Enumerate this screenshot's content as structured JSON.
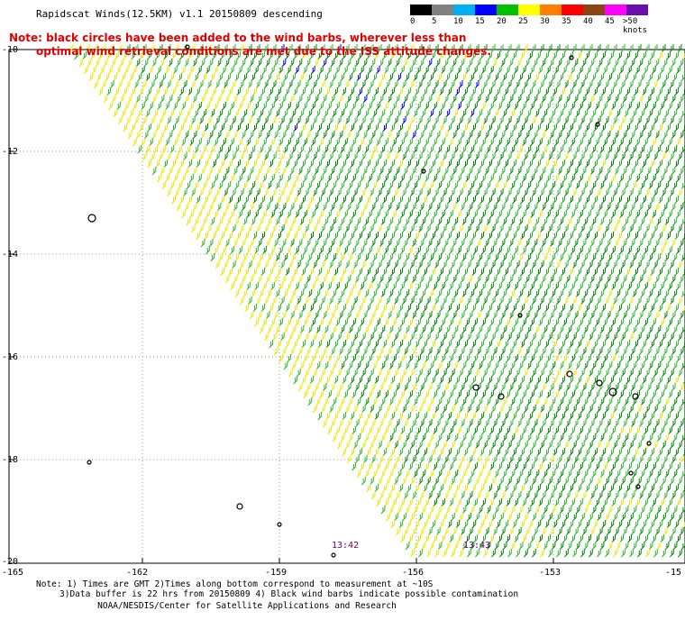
{
  "title": "Rapidscat Winds(12.5KM) v1.1 20150809 descending",
  "note_line1": "Note: black circles have been added to the wind barbs, wherever less than",
  "note_line2": "optimal wind retrieval conditions are met due to the ISS attitude changes.",
  "legend": {
    "labels": [
      "0",
      "5",
      "10",
      "15",
      "20",
      "25",
      "30",
      "35",
      "40",
      "45",
      ">50 knots"
    ],
    "colors": [
      "#000000",
      "#808080",
      "#00b0f0",
      "#0000ff",
      "#00c000",
      "#ffff00",
      "#ff8000",
      "#ff0000",
      "#8b4513",
      "#ff00ff",
      "#6a0dad"
    ]
  },
  "y_axis": [
    "-10",
    "-12",
    "-14",
    "-16",
    "-18",
    "-20"
  ],
  "x_axis": [
    "-165",
    "-162",
    "-159",
    "-156",
    "-153",
    "-15"
  ],
  "time_labels": [
    "13:42",
    "13:43"
  ],
  "footer": {
    "line1": "Note: 1) Times are GMT 2)Times along bottom correspond to measurement at ~10S",
    "line2": "3)Data buffer is 22 hrs from 20150809 4) Black wind barbs indicate possible contamination",
    "line3": "NOAA/NESDIS/Center for Satellite Applications and Research"
  }
}
